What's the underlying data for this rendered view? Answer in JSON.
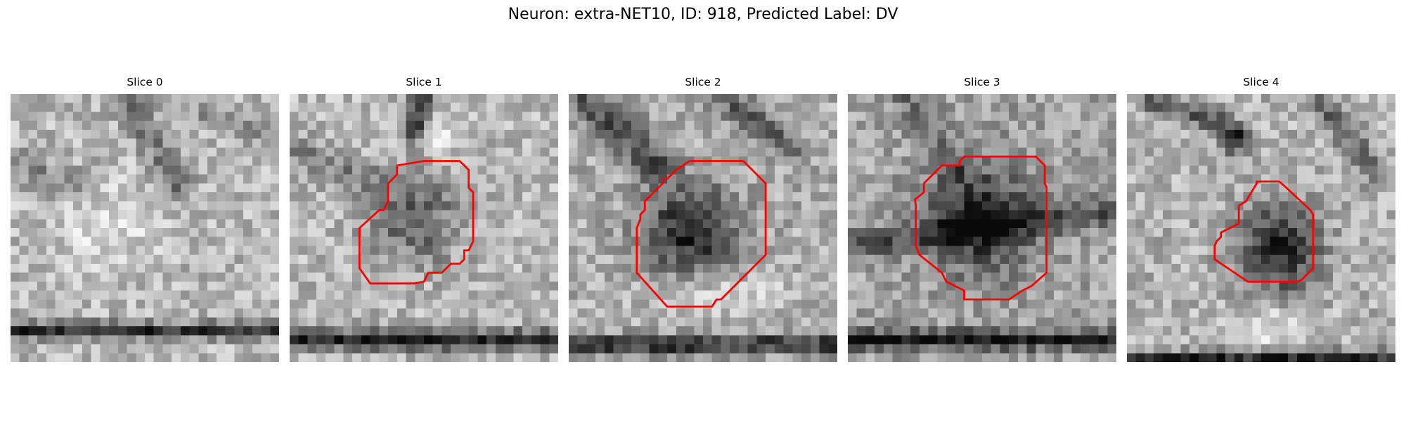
{
  "figure": {
    "title": "Neuron: extra-NET10, ID: 918, Predicted Label: DV",
    "outline_color": "#ff0000",
    "colormap": "grayscale"
  },
  "slices": [
    {
      "label": "Slice 0"
    },
    {
      "label": "Slice 1"
    },
    {
      "label": "Slice 2"
    },
    {
      "label": "Slice 3"
    },
    {
      "label": "Slice 4"
    }
  ]
}
